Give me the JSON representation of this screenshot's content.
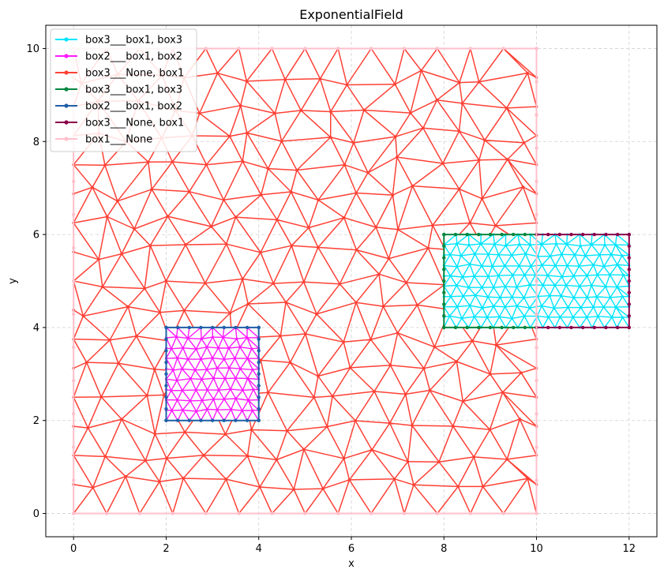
{
  "chart_data": {
    "type": "line",
    "title": "ExponentialField",
    "xlabel": "x",
    "ylabel": "y",
    "xlim": [
      -0.6,
      12.6
    ],
    "ylim": [
      -0.5,
      10.5
    ],
    "xticks": [
      0,
      2,
      4,
      6,
      8,
      10,
      12
    ],
    "yticks": [
      0,
      2,
      4,
      6,
      8,
      10
    ],
    "grid": true,
    "legend_position": "top-left",
    "series": [
      {
        "name": "box3___box1, box3",
        "color": "#00e5ff",
        "mesh": "fine",
        "region": [
          8,
          4,
          12,
          6
        ],
        "boundary": []
      },
      {
        "name": "box2___box1, box2",
        "color": "#ff1aff",
        "mesh": "fine",
        "region": [
          2,
          2,
          4,
          4
        ],
        "boundary": []
      },
      {
        "name": "box3___None, box1",
        "color": "#ff4136",
        "mesh": "coarse",
        "region": [
          0,
          0,
          10,
          10
        ],
        "boundary": []
      },
      {
        "name": "box3___box1, box3",
        "color": "#00873e",
        "mesh": "boundary",
        "region": [
          8,
          4,
          10,
          6
        ],
        "boundary": [
          [
            10,
            4
          ],
          [
            8,
            4
          ],
          [
            8,
            6
          ],
          [
            10,
            6
          ]
        ]
      },
      {
        "name": "box2___box1, box2",
        "color": "#1f5fa8",
        "mesh": "boundary",
        "region": [
          2,
          2,
          4,
          4
        ],
        "boundary": [
          [
            2,
            2
          ],
          [
            4,
            2
          ],
          [
            4,
            4
          ],
          [
            2,
            4
          ],
          [
            2,
            2
          ]
        ]
      },
      {
        "name": "box3___None, box1",
        "color": "#8b004b",
        "mesh": "boundary",
        "region": [
          10,
          4,
          12,
          6
        ],
        "boundary": [
          [
            10,
            4
          ],
          [
            12,
            4
          ],
          [
            12,
            6
          ],
          [
            10,
            6
          ]
        ]
      },
      {
        "name": "box1___None",
        "color": "#ffc0cb",
        "mesh": "boundary",
        "region": [
          0,
          0,
          10,
          10
        ],
        "boundary": [
          [
            0,
            0
          ],
          [
            10,
            0
          ],
          [
            10,
            10
          ],
          [
            0,
            10
          ],
          [
            0,
            0
          ]
        ]
      }
    ]
  }
}
